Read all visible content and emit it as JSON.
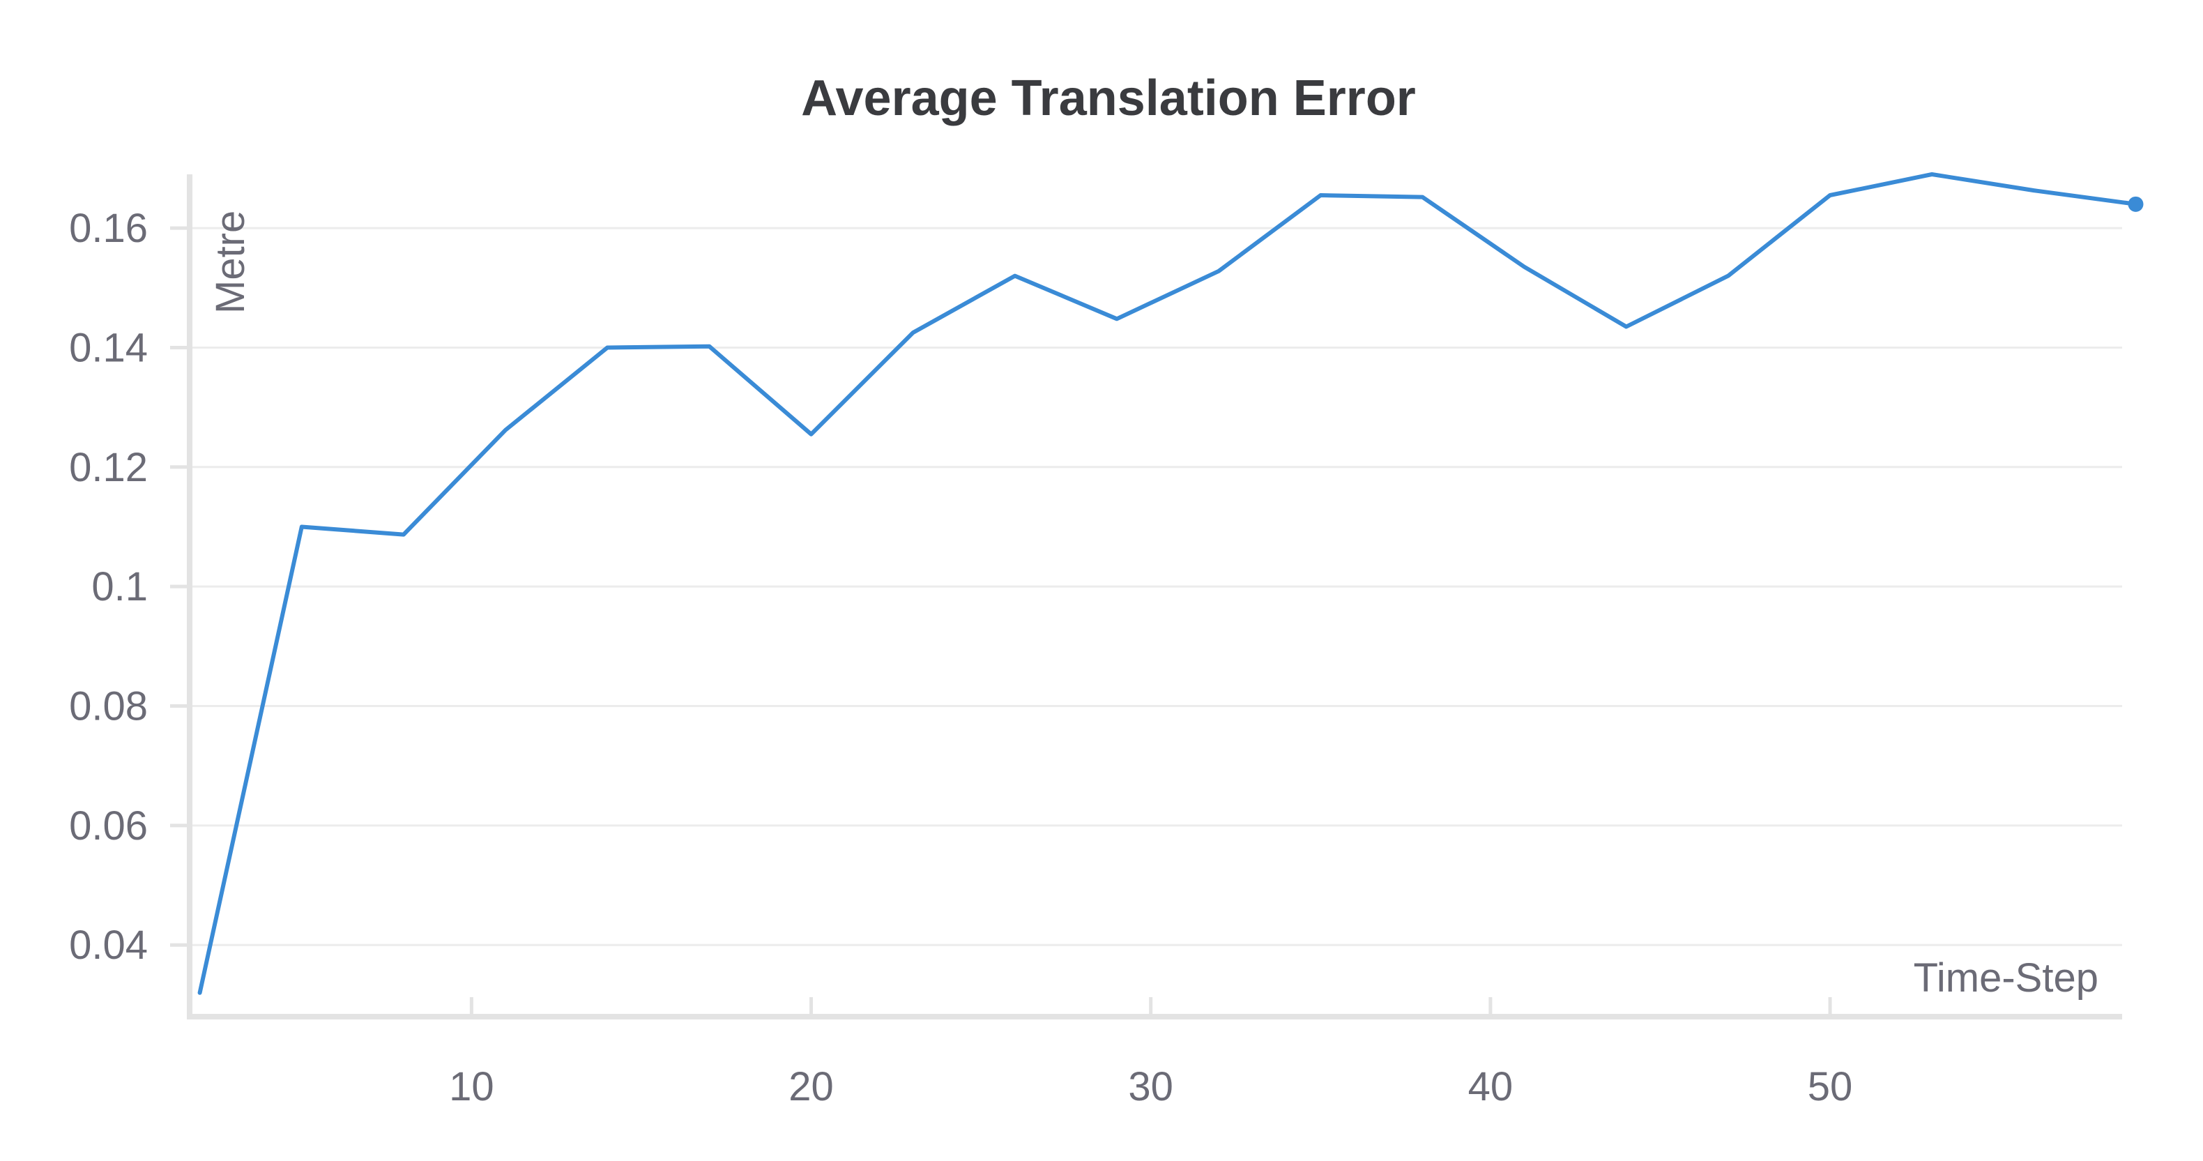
{
  "chart_data": {
    "type": "line",
    "title": "Average Translation Error",
    "xlabel": "Time-Step",
    "ylabel": "Metre",
    "xlim": [
      1.7,
      58.6
    ],
    "ylim": [
      0.028,
      0.169
    ],
    "x_ticks": [
      10,
      20,
      30,
      40,
      50
    ],
    "x_tick_labels": [
      "10",
      "20",
      "30",
      "40",
      "50"
    ],
    "y_ticks": [
      0.04,
      0.06,
      0.08,
      0.1,
      0.12,
      0.14,
      0.16
    ],
    "y_tick_labels": [
      "0.04",
      "0.06",
      "0.08",
      "0.1",
      "0.12",
      "0.14",
      "0.16"
    ],
    "grid": true,
    "legend": "none",
    "colors": {
      "series": "#3a8bd6"
    },
    "series": [
      {
        "x": [
          2,
          5,
          8,
          11,
          14,
          17,
          20,
          23,
          26,
          29,
          32,
          35,
          38,
          41,
          44,
          47,
          50,
          53,
          56,
          59
        ],
        "y": [
          0.032,
          0.11,
          0.1087,
          0.1262,
          0.14,
          0.1402,
          0.1255,
          0.1425,
          0.152,
          0.1448,
          0.1528,
          0.1655,
          0.1652,
          0.1535,
          0.1435,
          0.152,
          0.1655,
          0.169,
          0.1663,
          0.164
        ]
      }
    ]
  }
}
